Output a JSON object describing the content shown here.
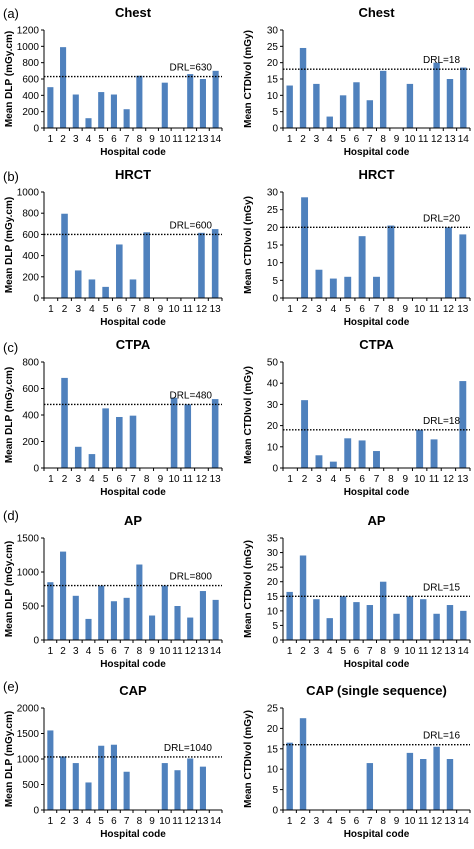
{
  "colors": {
    "bar": "#4f81bd",
    "axis": "#000000",
    "drl_line": "#000000"
  },
  "panels": [
    {
      "label": "(a)",
      "charts": [
        {
          "type": "bar",
          "title": "Chest",
          "ylabel": "Mean DLP (mGy.cm)",
          "xlabel": "Hospital code",
          "ylim": [
            0,
            1200
          ],
          "yticks": [
            0,
            200,
            400,
            600,
            800,
            1000,
            1200
          ],
          "categories": [
            "1",
            "2",
            "3",
            "4",
            "5",
            "6",
            "7",
            "8",
            "9",
            "10",
            "11",
            "12",
            "13",
            "14"
          ],
          "values": [
            500,
            990,
            410,
            120,
            440,
            410,
            230,
            640,
            null,
            555,
            null,
            660,
            600,
            700
          ],
          "drl": 630,
          "drl_label": "DRL=630"
        },
        {
          "type": "bar",
          "title": "Chest",
          "ylabel": "Mean CTDIvol (mGy)",
          "xlabel": "Hospital code",
          "ylim": [
            0,
            30
          ],
          "yticks": [
            0,
            5,
            10,
            15,
            20,
            25,
            30
          ],
          "categories": [
            "1",
            "2",
            "3",
            "4",
            "5",
            "6",
            "7",
            "8",
            "9",
            "10",
            "11",
            "12",
            "13",
            "14"
          ],
          "values": [
            13,
            24.5,
            13.5,
            3.5,
            10,
            14,
            8.5,
            17.5,
            null,
            13.5,
            null,
            20,
            15,
            18.5
          ],
          "drl": 18,
          "drl_label": "DRL=18"
        }
      ]
    },
    {
      "label": "(b)",
      "charts": [
        {
          "type": "bar",
          "title": "HRCT",
          "ylabel": "Mean DLP (mGy.cm)",
          "xlabel": "Hospital code",
          "ylim": [
            0,
            1000
          ],
          "yticks": [
            0,
            200,
            400,
            600,
            800,
            1000
          ],
          "categories": [
            "1",
            "2",
            "3",
            "4",
            "5",
            "6",
            "7",
            "8",
            "9",
            "10",
            "11",
            "12",
            "13"
          ],
          "values": [
            null,
            795,
            260,
            175,
            105,
            505,
            175,
            620,
            null,
            null,
            null,
            615,
            650
          ],
          "drl": 600,
          "drl_label": "DRL=600"
        },
        {
          "type": "bar",
          "title": "HRCT",
          "ylabel": "Mean CTDIvol (mGy)",
          "xlabel": "Hospital code",
          "ylim": [
            0,
            30
          ],
          "yticks": [
            0,
            5,
            10,
            15,
            20,
            25,
            30
          ],
          "categories": [
            "1",
            "2",
            "3",
            "4",
            "5",
            "6",
            "7",
            "8",
            "9",
            "10",
            "11",
            "12",
            "13"
          ],
          "values": [
            null,
            28.5,
            8,
            5.5,
            6,
            17.5,
            6,
            20.5,
            null,
            null,
            null,
            20,
            18
          ],
          "drl": 20,
          "drl_label": "DRL=20"
        }
      ]
    },
    {
      "label": "(c)",
      "charts": [
        {
          "type": "bar",
          "title": "CTPA",
          "ylabel": "Mean DLP (mGy.cm)",
          "xlabel": "Hospital code",
          "ylim": [
            0,
            800
          ],
          "yticks": [
            0,
            200,
            400,
            600,
            800
          ],
          "categories": [
            "1",
            "2",
            "3",
            "4",
            "5",
            "6",
            "7",
            "8",
            "9",
            "10",
            "11",
            "12",
            "13"
          ],
          "values": [
            null,
            680,
            160,
            105,
            450,
            385,
            395,
            null,
            null,
            530,
            480,
            null,
            520
          ],
          "drl": 480,
          "drl_label": "DRL=480"
        },
        {
          "type": "bar",
          "title": "CTPA",
          "ylabel": "Mean CTDIvol (mGy)",
          "xlabel": "Hospital code",
          "ylim": [
            0,
            50
          ],
          "yticks": [
            0,
            10,
            20,
            30,
            40,
            50
          ],
          "categories": [
            "1",
            "2",
            "3",
            "4",
            "5",
            "6",
            "7",
            "8",
            "9",
            "10",
            "11",
            "12",
            "13"
          ],
          "values": [
            null,
            32,
            6,
            3,
            14,
            13,
            8,
            null,
            null,
            18,
            13.5,
            null,
            41
          ],
          "drl": 18,
          "drl_label": "DRL=18"
        }
      ]
    },
    {
      "label": "(d)",
      "charts": [
        {
          "type": "bar",
          "title": "AP",
          "ylabel": "Mean DLP (mGy.cm)",
          "xlabel": "Hospital code",
          "ylim": [
            0,
            1500
          ],
          "yticks": [
            0,
            500,
            1000,
            1500
          ],
          "categories": [
            "1",
            "2",
            "3",
            "4",
            "5",
            "6",
            "7",
            "8",
            "9",
            "10",
            "11",
            "12",
            "13",
            "14"
          ],
          "values": [
            850,
            1300,
            650,
            310,
            800,
            570,
            620,
            1110,
            360,
            800,
            500,
            330,
            720,
            590
          ],
          "drl": 800,
          "drl_label": "DRL=800"
        },
        {
          "type": "bar",
          "title": "AP",
          "ylabel": "Mean CTDIvol (mGy)",
          "xlabel": "Hospital code",
          "ylim": [
            0,
            35
          ],
          "yticks": [
            0,
            5,
            10,
            15,
            20,
            25,
            30,
            35
          ],
          "categories": [
            "1",
            "2",
            "3",
            "4",
            "5",
            "6",
            "7",
            "8",
            "9",
            "10",
            "11",
            "12",
            "13",
            "14"
          ],
          "values": [
            16.5,
            29,
            14,
            7.5,
            15,
            13,
            12,
            20,
            9,
            15,
            14,
            9,
            12,
            10
          ],
          "drl": 15,
          "drl_label": "DRL=15"
        }
      ]
    },
    {
      "label": "(e)",
      "charts": [
        {
          "type": "bar",
          "title": "CAP",
          "ylabel": "Mean DLP (mGy.cm)",
          "xlabel": "Hospital code",
          "ylim": [
            0,
            2000
          ],
          "yticks": [
            0,
            500,
            1000,
            1500,
            2000
          ],
          "categories": [
            "1",
            "2",
            "3",
            "4",
            "5",
            "6",
            "7",
            "8",
            "9",
            "10",
            "11",
            "12",
            "13",
            "14"
          ],
          "values": [
            1560,
            1050,
            920,
            540,
            1260,
            1280,
            750,
            null,
            null,
            920,
            780,
            1010,
            850,
            null
          ],
          "drl": 1040,
          "drl_label": "DRL=1040"
        },
        {
          "type": "bar",
          "title": "CAP (single sequence)",
          "ylabel": "Mean CTDIvol (mGy)",
          "xlabel": "Hospital code",
          "ylim": [
            0,
            25
          ],
          "yticks": [
            0,
            5,
            10,
            15,
            20,
            25
          ],
          "categories": [
            "1",
            "2",
            "3",
            "4",
            "5",
            "6",
            "7",
            "8",
            "9",
            "10",
            "11",
            "12",
            "13",
            "14"
          ],
          "values": [
            16.5,
            22.5,
            null,
            null,
            null,
            null,
            11.5,
            null,
            null,
            14,
            12.5,
            15.5,
            12.5,
            null
          ],
          "drl": 16,
          "drl_label": "DRL=16"
        }
      ]
    }
  ]
}
